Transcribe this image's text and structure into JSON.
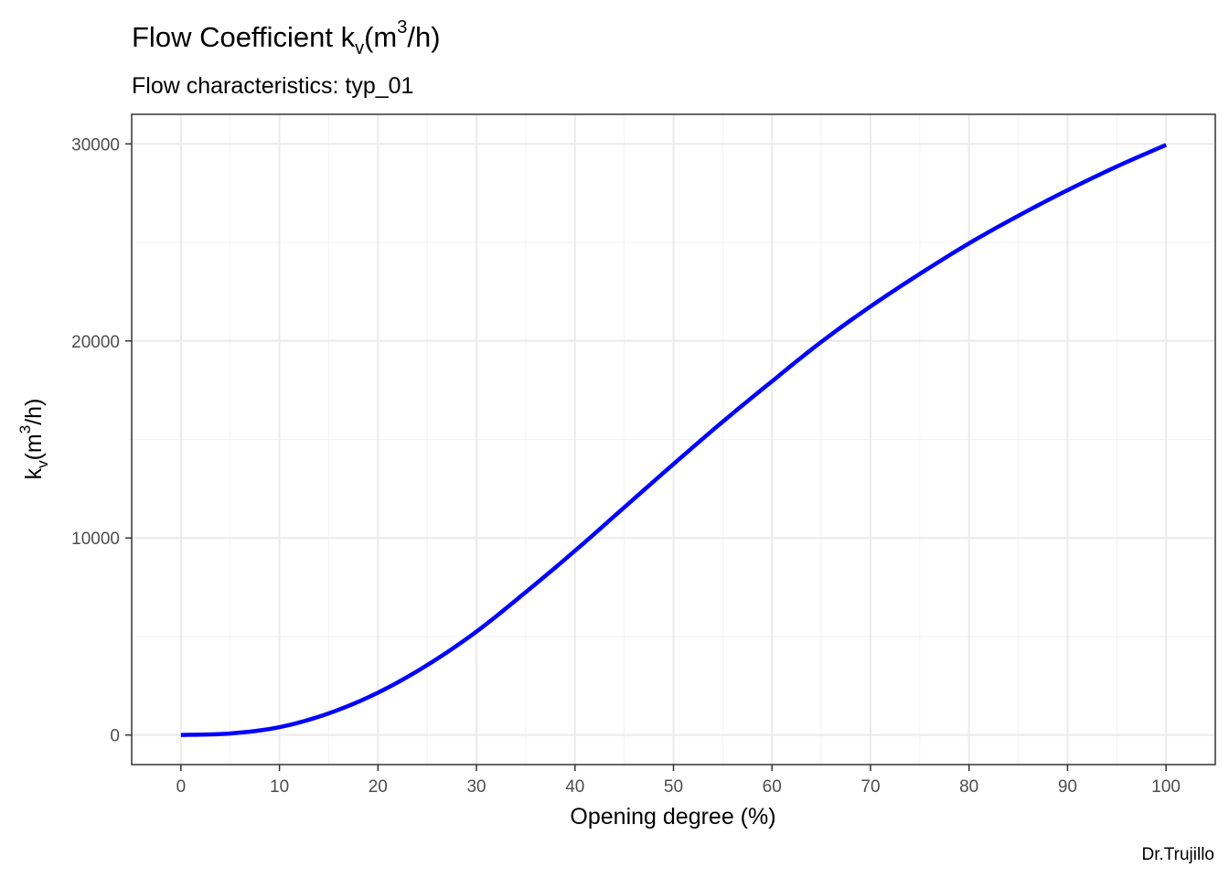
{
  "chart_data": {
    "type": "line",
    "title": {
      "prefix": "Flow Coefficient k",
      "sub": "v",
      "open": "(m",
      "sup": "3",
      "close": "/h)"
    },
    "subtitle": "Flow characteristics:  typ_01",
    "xlabel": "Opening degree (%)",
    "ylabel": {
      "prefix": "k",
      "sub": "v",
      "open": "(m",
      "sup": "3",
      "close": "/h)"
    },
    "caption": "Dr.Trujillo",
    "xlim": [
      -5,
      105
    ],
    "ylim": [
      -1500,
      31500
    ],
    "x_ticks": [
      0,
      10,
      20,
      30,
      40,
      50,
      60,
      70,
      80,
      90,
      100
    ],
    "y_ticks": [
      0,
      10000,
      20000,
      30000
    ],
    "grid": true,
    "line_color": "#0000ff",
    "series": [
      {
        "x": [
          0,
          5,
          10,
          15,
          20,
          25,
          30,
          35,
          40,
          45,
          50,
          55,
          60,
          65,
          70,
          75,
          80,
          85,
          90,
          95,
          100
        ],
        "values": [
          0,
          80,
          400,
          1100,
          2150,
          3550,
          5250,
          7250,
          9350,
          11550,
          13750,
          15900,
          17950,
          19950,
          21750,
          23400,
          24950,
          26350,
          27650,
          28850,
          29950
        ]
      }
    ]
  }
}
